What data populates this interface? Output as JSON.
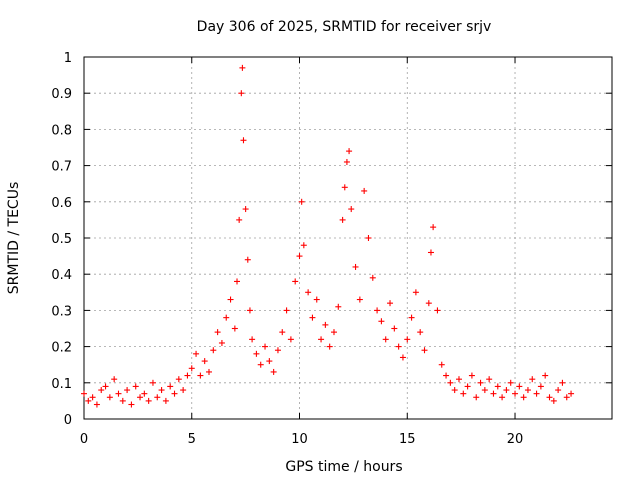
{
  "chart_data": {
    "type": "scatter",
    "title": "Day 306 of 2025, SRMTID for receiver srjv",
    "xlabel": "GPS time / hours",
    "ylabel": "SRMTID / TECUs",
    "xlim": [
      0,
      24.5
    ],
    "ylim": [
      0,
      1
    ],
    "xticks": [
      0,
      5,
      10,
      15,
      20
    ],
    "xtick_labels": [
      "0",
      "5",
      "10",
      "15",
      "20"
    ],
    "yticks": [
      0,
      0.1,
      0.2,
      0.3,
      0.4,
      0.5,
      0.6,
      0.7,
      0.8,
      0.9,
      1
    ],
    "ytick_labels": [
      "0",
      "0.1",
      "0.2",
      "0.3",
      "0.4",
      "0.5",
      "0.6",
      "0.7",
      "0.8",
      "0.9",
      "1"
    ],
    "grid": true,
    "marker": "+",
    "series": [
      {
        "name": "SRMTID",
        "color": "#ff0000",
        "points": [
          [
            0.0,
            0.07
          ],
          [
            0.2,
            0.05
          ],
          [
            0.4,
            0.06
          ],
          [
            0.6,
            0.04
          ],
          [
            0.8,
            0.08
          ],
          [
            1.0,
            0.09
          ],
          [
            1.2,
            0.06
          ],
          [
            1.4,
            0.11
          ],
          [
            1.6,
            0.07
          ],
          [
            1.8,
            0.05
          ],
          [
            2.0,
            0.08
          ],
          [
            2.2,
            0.04
          ],
          [
            2.4,
            0.09
          ],
          [
            2.6,
            0.06
          ],
          [
            2.8,
            0.07
          ],
          [
            3.0,
            0.05
          ],
          [
            3.2,
            0.1
          ],
          [
            3.4,
            0.06
          ],
          [
            3.6,
            0.08
          ],
          [
            3.8,
            0.05
          ],
          [
            4.0,
            0.09
          ],
          [
            4.2,
            0.07
          ],
          [
            4.4,
            0.11
          ],
          [
            4.6,
            0.08
          ],
          [
            4.8,
            0.12
          ],
          [
            5.0,
            0.14
          ],
          [
            5.2,
            0.18
          ],
          [
            5.4,
            0.12
          ],
          [
            5.6,
            0.16
          ],
          [
            5.8,
            0.13
          ],
          [
            6.0,
            0.19
          ],
          [
            6.2,
            0.24
          ],
          [
            6.4,
            0.21
          ],
          [
            6.6,
            0.28
          ],
          [
            6.8,
            0.33
          ],
          [
            7.0,
            0.25
          ],
          [
            7.1,
            0.38
          ],
          [
            7.2,
            0.55
          ],
          [
            7.3,
            0.9
          ],
          [
            7.35,
            0.97
          ],
          [
            7.4,
            0.77
          ],
          [
            7.5,
            0.58
          ],
          [
            7.6,
            0.44
          ],
          [
            7.7,
            0.3
          ],
          [
            7.8,
            0.22
          ],
          [
            8.0,
            0.18
          ],
          [
            8.2,
            0.15
          ],
          [
            8.4,
            0.2
          ],
          [
            8.6,
            0.16
          ],
          [
            8.8,
            0.13
          ],
          [
            9.0,
            0.19
          ],
          [
            9.2,
            0.24
          ],
          [
            9.4,
            0.3
          ],
          [
            9.6,
            0.22
          ],
          [
            9.8,
            0.38
          ],
          [
            10.0,
            0.45
          ],
          [
            10.1,
            0.6
          ],
          [
            10.2,
            0.48
          ],
          [
            10.4,
            0.35
          ],
          [
            10.6,
            0.28
          ],
          [
            10.8,
            0.33
          ],
          [
            11.0,
            0.22
          ],
          [
            11.2,
            0.26
          ],
          [
            11.4,
            0.2
          ],
          [
            11.6,
            0.24
          ],
          [
            11.8,
            0.31
          ],
          [
            12.0,
            0.55
          ],
          [
            12.1,
            0.64
          ],
          [
            12.2,
            0.71
          ],
          [
            12.3,
            0.74
          ],
          [
            12.4,
            0.58
          ],
          [
            12.6,
            0.42
          ],
          [
            12.8,
            0.33
          ],
          [
            13.0,
            0.63
          ],
          [
            13.2,
            0.5
          ],
          [
            13.4,
            0.39
          ],
          [
            13.6,
            0.3
          ],
          [
            13.8,
            0.27
          ],
          [
            14.0,
            0.22
          ],
          [
            14.2,
            0.32
          ],
          [
            14.4,
            0.25
          ],
          [
            14.6,
            0.2
          ],
          [
            14.8,
            0.17
          ],
          [
            15.0,
            0.22
          ],
          [
            15.2,
            0.28
          ],
          [
            15.4,
            0.35
          ],
          [
            15.6,
            0.24
          ],
          [
            15.8,
            0.19
          ],
          [
            16.0,
            0.32
          ],
          [
            16.1,
            0.46
          ],
          [
            16.2,
            0.53
          ],
          [
            16.4,
            0.3
          ],
          [
            16.6,
            0.15
          ],
          [
            16.8,
            0.12
          ],
          [
            17.0,
            0.1
          ],
          [
            17.2,
            0.08
          ],
          [
            17.4,
            0.11
          ],
          [
            17.6,
            0.07
          ],
          [
            17.8,
            0.09
          ],
          [
            18.0,
            0.12
          ],
          [
            18.2,
            0.06
          ],
          [
            18.4,
            0.1
          ],
          [
            18.6,
            0.08
          ],
          [
            18.8,
            0.11
          ],
          [
            19.0,
            0.07
          ],
          [
            19.2,
            0.09
          ],
          [
            19.4,
            0.06
          ],
          [
            19.6,
            0.08
          ],
          [
            19.8,
            0.1
          ],
          [
            20.0,
            0.07
          ],
          [
            20.2,
            0.09
          ],
          [
            20.4,
            0.06
          ],
          [
            20.6,
            0.08
          ],
          [
            20.8,
            0.11
          ],
          [
            21.0,
            0.07
          ],
          [
            21.2,
            0.09
          ],
          [
            21.4,
            0.12
          ],
          [
            21.6,
            0.06
          ],
          [
            21.8,
            0.05
          ],
          [
            22.0,
            0.08
          ],
          [
            22.2,
            0.1
          ],
          [
            22.4,
            0.06
          ],
          [
            22.6,
            0.07
          ]
        ]
      }
    ]
  }
}
